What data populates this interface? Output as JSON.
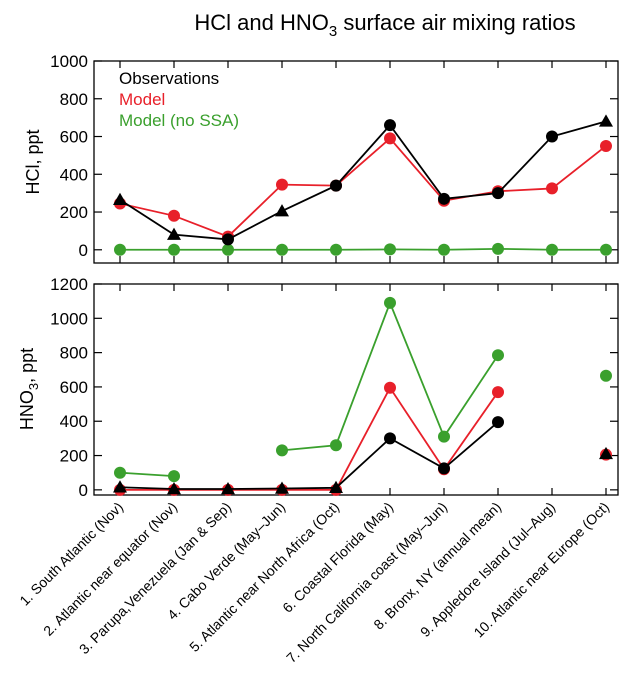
{
  "title": {
    "prefix": "HCl and HNO",
    "subscript": "3",
    "suffix": " surface air mixing ratios"
  },
  "colors": {
    "observations": "#000000",
    "model": "#e8202a",
    "model_no_ssa": "#3aa02d"
  },
  "legend": {
    "observations": "Observations",
    "model": "Model",
    "model_no_ssa": "Model (no SSA)"
  },
  "chart_data": [
    {
      "type": "line",
      "ylabel": "HCl, ppt",
      "ylim": [
        -70,
        1000
      ],
      "yticks": [
        0,
        200,
        400,
        600,
        800,
        1000
      ],
      "x": [
        1,
        2,
        3,
        4,
        5,
        6,
        7,
        8,
        9,
        10
      ],
      "series": [
        {
          "name": "Observations",
          "color_key": "observations",
          "values": [
            265,
            80,
            55,
            205,
            340,
            660,
            270,
            300,
            600,
            680
          ],
          "markers": [
            "triangle",
            "triangle",
            "circle",
            "triangle",
            "circle",
            "circle",
            "circle",
            "circle",
            "circle",
            "triangle"
          ]
        },
        {
          "name": "Model",
          "color_key": "model",
          "values": [
            245,
            180,
            70,
            345,
            340,
            590,
            260,
            310,
            325,
            550
          ]
        },
        {
          "name": "Model (no SSA)",
          "color_key": "model_no_ssa",
          "values": [
            0,
            0,
            0,
            0,
            0,
            2,
            0,
            5,
            0,
            0
          ]
        }
      ]
    },
    {
      "type": "line",
      "ylabel_prefix": "HNO",
      "ylabel_subscript": "3",
      "ylabel_suffix": ", ppt",
      "ylim": [
        -30,
        1200
      ],
      "yticks": [
        0,
        200,
        400,
        600,
        800,
        1000,
        1200
      ],
      "x": [
        1,
        2,
        3,
        4,
        5,
        6,
        7,
        8,
        9,
        10
      ],
      "categories": [
        "1. South Atlantic (Nov)",
        "2. Atlantic near equator (Nov)",
        "3. Parupa,Venezuela (Jan & Sep)",
        "4. Cabo Verde (May–Jun)",
        "5. Atlantic near North Africa (Oct)",
        "6. Coastal Florida (May)",
        "7. North California coast (May–Jun)",
        "8. Bronx, NY (annual mean)",
        "9. Appledore Island (Jul–Aug)",
        "10. Atlantic near Europe (Oct)"
      ],
      "series": [
        {
          "name": "Observations",
          "color_key": "observations",
          "values": [
            15,
            5,
            5,
            8,
            12,
            300,
            125,
            395,
            null,
            210
          ],
          "markers": [
            "triangle",
            "triangle",
            "triangle",
            "triangle",
            "triangle",
            "circle",
            "circle",
            "circle",
            null,
            "triangle"
          ]
        },
        {
          "name": "Model",
          "color_key": "model",
          "values": [
            0,
            0,
            0,
            0,
            0,
            595,
            120,
            570,
            null,
            205
          ]
        },
        {
          "name": "Model (no SSA)",
          "color_key": "model_no_ssa",
          "values": [
            100,
            80,
            null,
            230,
            260,
            1090,
            310,
            785,
            null,
            665
          ]
        }
      ]
    }
  ]
}
